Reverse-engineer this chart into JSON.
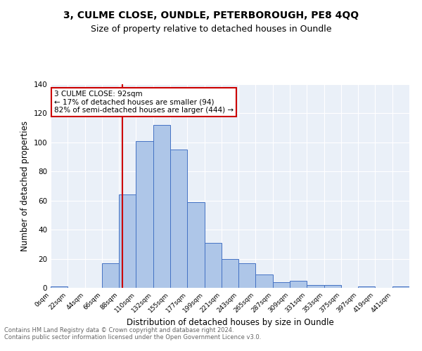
{
  "title": "3, CULME CLOSE, OUNDLE, PETERBOROUGH, PE8 4QQ",
  "subtitle": "Size of property relative to detached houses in Oundle",
  "xlabel": "Distribution of detached houses by size in Oundle",
  "ylabel": "Number of detached properties",
  "bin_edges": [
    0,
    11,
    22,
    33,
    44,
    55,
    66,
    77,
    88,
    99,
    110,
    121,
    132,
    143,
    155,
    166,
    177,
    188,
    199,
    210,
    221,
    232,
    243,
    254,
    265,
    276,
    287,
    298,
    309,
    320,
    331,
    342,
    353,
    364,
    375,
    386,
    397,
    408,
    419,
    430,
    441,
    452
  ],
  "bin_labels": [
    "0sqm",
    "22sqm",
    "44sqm",
    "66sqm",
    "88sqm",
    "110sqm",
    "132sqm",
    "155sqm",
    "177sqm",
    "199sqm",
    "221sqm",
    "243sqm",
    "265sqm",
    "287sqm",
    "309sqm",
    "331sqm",
    "353sqm",
    "375sqm",
    "397sqm",
    "419sqm",
    "441sqm"
  ],
  "bar_heights": [
    1,
    0,
    0,
    17,
    64,
    101,
    112,
    95,
    59,
    31,
    20,
    17,
    9,
    4,
    5,
    2,
    2,
    0,
    1,
    0,
    1
  ],
  "bar_color": "#aec6e8",
  "bar_edge_color": "#4472c4",
  "property_line_x": 92,
  "property_line_color": "#cc0000",
  "annotation_text": "3 CULME CLOSE: 92sqm\n← 17% of detached houses are smaller (94)\n82% of semi-detached houses are larger (444) →",
  "annotation_box_color": "#ffffff",
  "annotation_box_edge_color": "#cc0000",
  "ylim": [
    0,
    140
  ],
  "yticks": [
    0,
    20,
    40,
    60,
    80,
    100,
    120,
    140
  ],
  "background_color": "#eaf0f8",
  "grid_color": "#ffffff",
  "footer_text": "Contains HM Land Registry data © Crown copyright and database right 2024.\nContains public sector information licensed under the Open Government Licence v3.0.",
  "title_fontsize": 10,
  "subtitle_fontsize": 9,
  "xlabel_fontsize": 8.5,
  "ylabel_fontsize": 8.5
}
